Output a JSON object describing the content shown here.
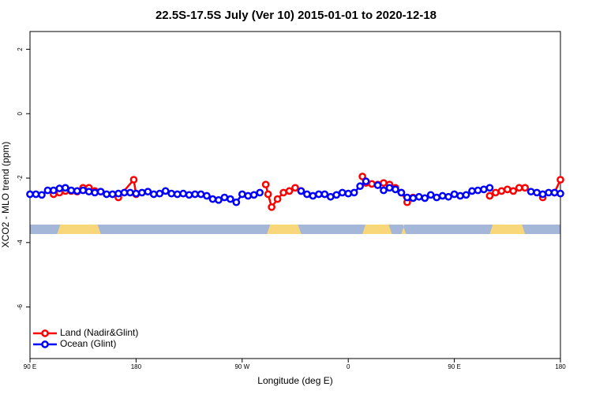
{
  "chart_data": {
    "type": "line",
    "title": "22.5S-17.5S July (Ver 10)   2015-01-01 to 2020-12-18",
    "xlabel": "Longitude (deg E)",
    "ylabel": "XCO2 - MLO trend (ppm)",
    "xlim": [
      90,
      540
    ],
    "ylim": [
      -7.6,
      2.55
    ],
    "xticks": [
      {
        "value": 90,
        "label": "90 E"
      },
      180,
      {
        "value": 270,
        "label": "90 W"
      },
      {
        "value": 360,
        "label": "0"
      },
      {
        "value": 450,
        "label": "90 E"
      },
      {
        "value": 540,
        "label": "180"
      }
    ],
    "yticks": [
      -6,
      -4,
      -2,
      0,
      2
    ],
    "legend": "lower left",
    "land_segments": [
      [
        113,
        150
      ],
      [
        291,
        320
      ],
      [
        372,
        397
      ],
      [
        405,
        409
      ],
      [
        480,
        510
      ]
    ],
    "series": [
      {
        "name": "Land (Nadir&Glint)",
        "color": "#ff0000",
        "x": [
          110,
          115,
          120,
          125,
          130,
          135,
          140,
          145,
          150,
          155,
          165,
          178,
          180,
          185,
          290,
          292,
          295,
          300,
          305,
          310,
          315,
          320,
          325,
          372,
          375,
          380,
          385,
          390,
          395,
          400,
          405,
          410,
          415,
          420,
          480,
          485,
          490,
          495,
          500,
          505,
          510,
          515,
          525,
          530,
          535,
          540
        ],
        "values": [
          -2.5,
          -2.45,
          -2.4,
          -2.4,
          -2.42,
          -2.3,
          -2.3,
          -2.4,
          -2.42,
          null,
          -2.6,
          -2.05,
          -2.5,
          null,
          -2.2,
          -2.5,
          -2.9,
          -2.65,
          -2.45,
          -2.4,
          -2.3,
          -2.4,
          null,
          -1.95,
          -2.15,
          -2.18,
          -2.2,
          -2.15,
          -2.2,
          -2.3,
          -2.45,
          -2.75,
          -2.6,
          null,
          -2.55,
          -2.45,
          -2.4,
          -2.35,
          -2.4,
          -2.3,
          -2.3,
          null,
          -2.6,
          null,
          -2.45,
          -2.05
        ]
      },
      {
        "name": "Ocean (Glint)",
        "color": "#0000ff",
        "x": [
          90,
          95,
          100,
          105,
          110,
          115,
          120,
          125,
          130,
          135,
          140,
          145,
          150,
          155,
          160,
          165,
          170,
          175,
          180,
          185,
          190,
          195,
          200,
          205,
          210,
          215,
          220,
          225,
          230,
          235,
          240,
          245,
          250,
          255,
          260,
          265,
          270,
          275,
          280,
          285,
          290,
          295,
          300,
          305,
          310,
          315,
          320,
          325,
          330,
          335,
          340,
          345,
          350,
          355,
          360,
          365,
          370,
          375,
          380,
          385,
          390,
          395,
          400,
          405,
          410,
          415,
          420,
          425,
          430,
          435,
          440,
          445,
          450,
          455,
          460,
          465,
          470,
          475,
          480,
          485,
          490,
          495,
          500,
          505,
          510,
          515,
          520,
          525,
          530,
          535,
          540
        ],
        "values": [
          -2.5,
          -2.5,
          -2.52,
          -2.38,
          -2.38,
          -2.32,
          -2.3,
          -2.38,
          -2.4,
          -2.38,
          -2.42,
          -2.45,
          -2.42,
          -2.5,
          -2.5,
          -2.48,
          -2.45,
          -2.45,
          -2.48,
          -2.45,
          -2.42,
          -2.5,
          -2.48,
          -2.4,
          -2.48,
          -2.5,
          -2.48,
          -2.52,
          -2.5,
          -2.5,
          -2.55,
          -2.65,
          -2.68,
          -2.6,
          -2.65,
          -2.75,
          -2.5,
          -2.55,
          -2.52,
          -2.45,
          null,
          null,
          null,
          null,
          null,
          null,
          -2.4,
          -2.5,
          -2.55,
          -2.5,
          -2.5,
          -2.58,
          -2.52,
          -2.45,
          -2.48,
          -2.45,
          -2.25,
          -2.1,
          null,
          -2.22,
          -2.38,
          -2.3,
          -2.35,
          -2.45,
          -2.6,
          -2.62,
          -2.58,
          -2.62,
          -2.52,
          -2.6,
          -2.55,
          -2.58,
          -2.5,
          -2.55,
          -2.52,
          -2.4,
          -2.38,
          -2.35,
          -2.3,
          null,
          null,
          null,
          null,
          null,
          null,
          -2.42,
          -2.45,
          -2.5,
          -2.45,
          -2.45,
          -2.48
        ]
      }
    ]
  }
}
